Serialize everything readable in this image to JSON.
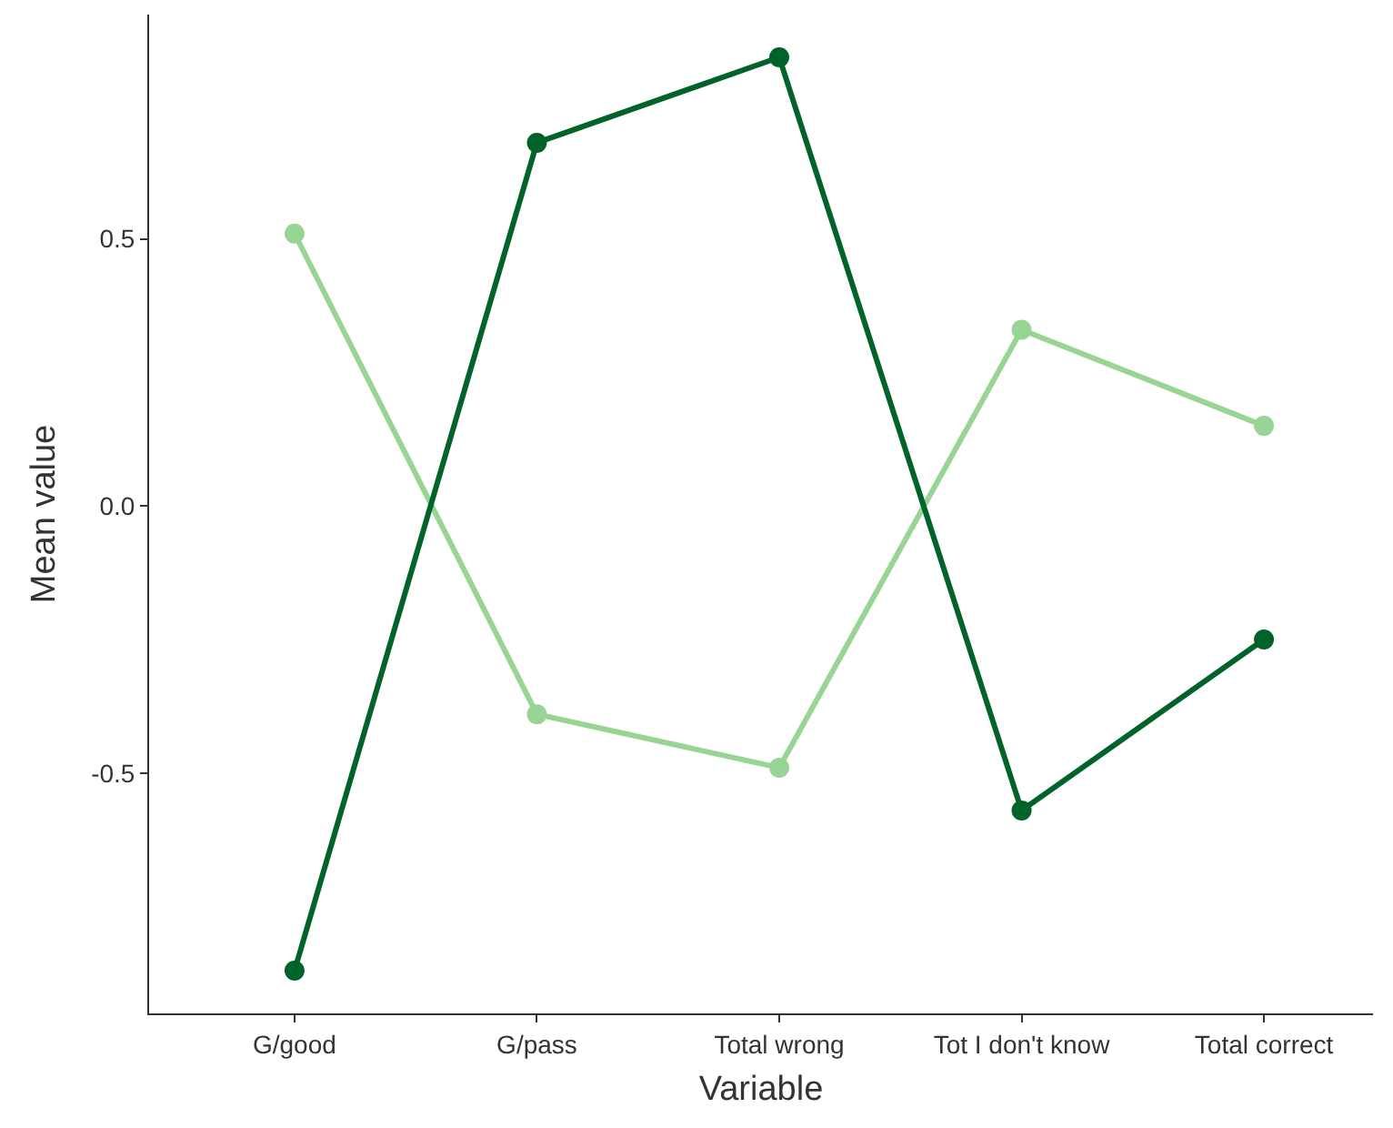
{
  "chart_data": {
    "type": "line",
    "xlabel": "Variable",
    "ylabel": "Mean value",
    "categories": [
      "G/good",
      "G/pass",
      "Total wrong",
      "Tot I don't know",
      "Total correct"
    ],
    "series": [
      {
        "color": "#98d594",
        "values": [
          0.51,
          -0.39,
          -0.49,
          0.33,
          0.15
        ]
      },
      {
        "color": "#00632a",
        "values": [
          -0.87,
          0.68,
          0.84,
          -0.57,
          -0.25
        ]
      }
    ],
    "ylim": [
      -0.95,
      0.92
    ],
    "yticks": [
      {
        "value": -0.5,
        "label": "-0.5"
      },
      {
        "value": 0,
        "label": "0.0"
      },
      0.5
    ],
    "marker": "circle",
    "line_style": "solid"
  }
}
